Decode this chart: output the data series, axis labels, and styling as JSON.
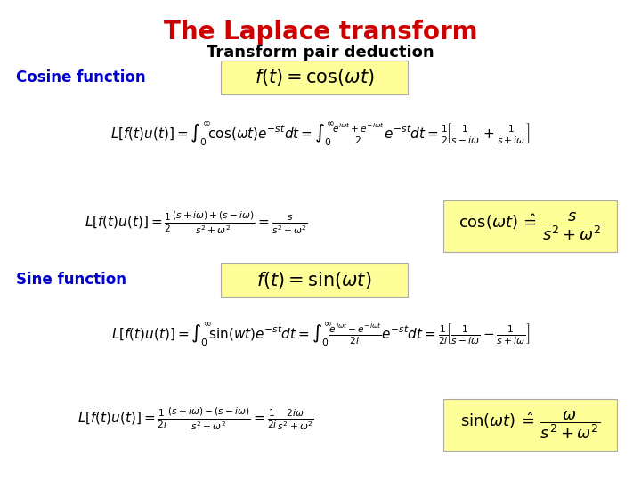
{
  "title": "The Laplace transform",
  "subtitle": "Transform pair deduction",
  "title_color": "#cc0000",
  "subtitle_color": "#000000",
  "cosine_label": "Cosine function",
  "sine_label": "Sine function",
  "label_color": "#0000cc",
  "highlight_color": "#ffff99",
  "bg_color": "#ffffff",
  "figsize": [
    7.2,
    5.4
  ],
  "dpi": 100
}
